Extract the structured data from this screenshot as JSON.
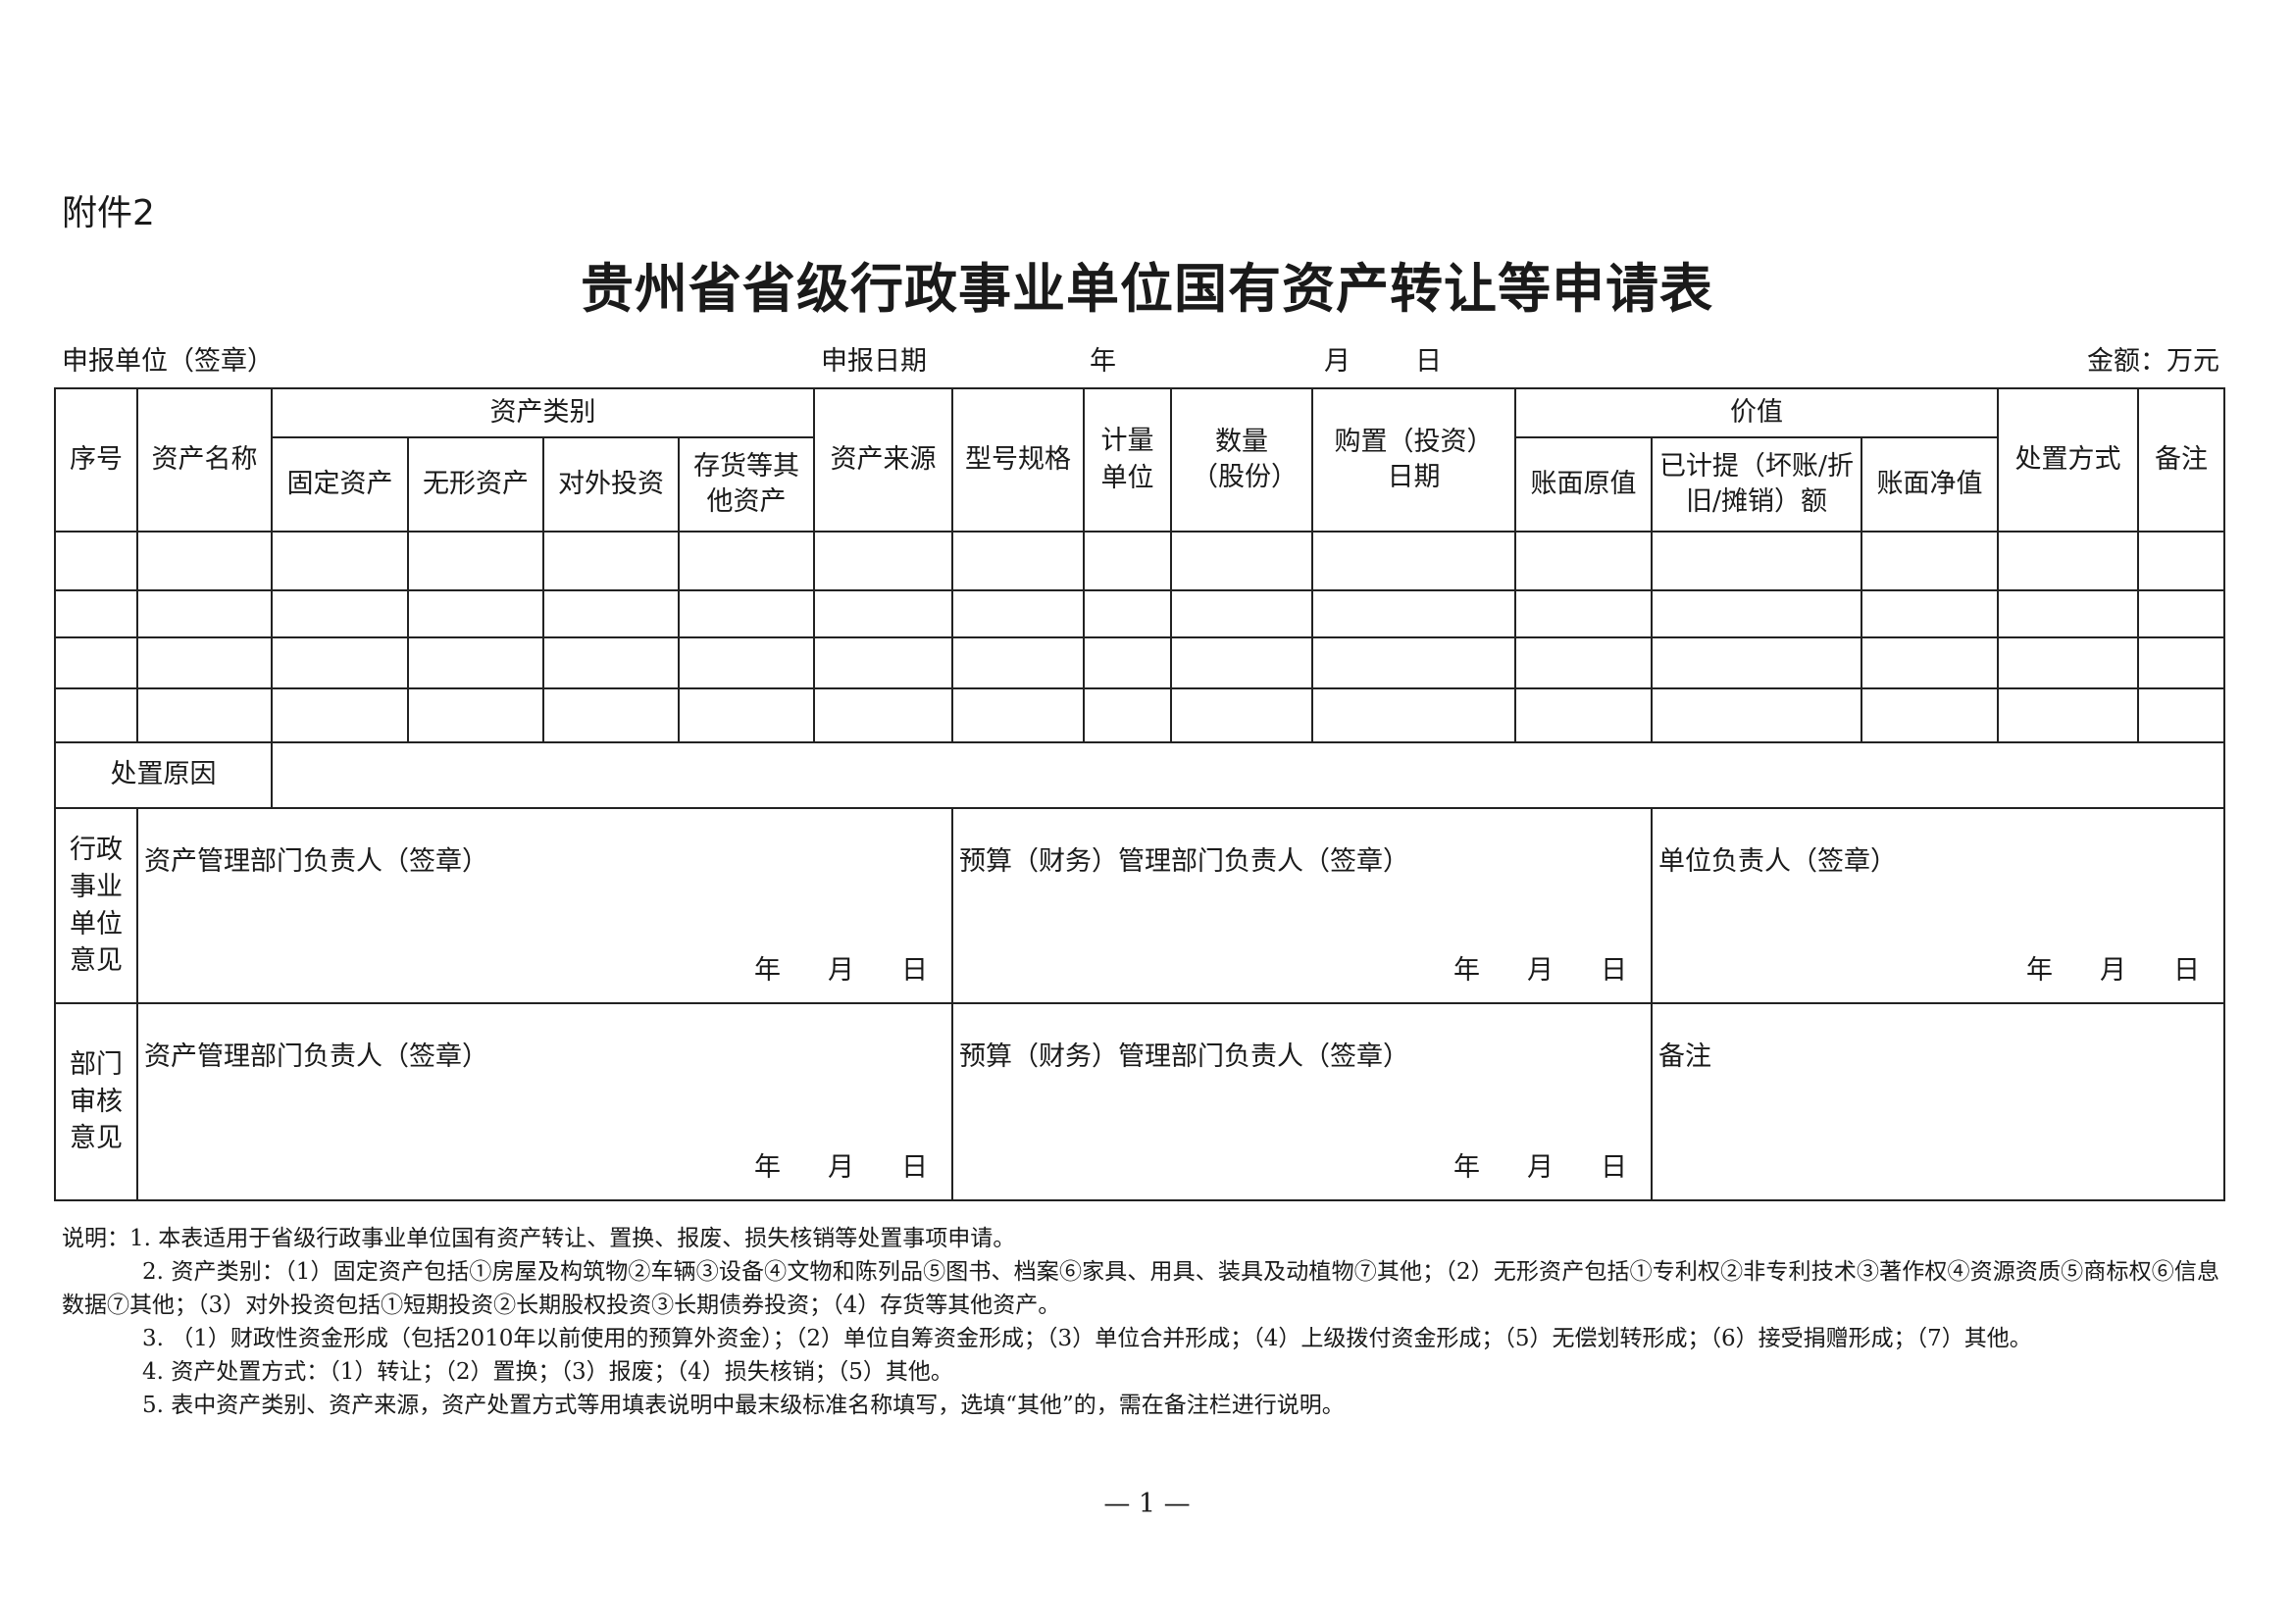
{
  "attachment_label": "附件2",
  "title": "贵州省省级行政事业单位国有资产转让等申请表",
  "header_line": {
    "unit_label": "申报单位（签章）",
    "date_label": "申报日期",
    "year": "年",
    "month": "月",
    "day": "日",
    "amount_unit": "金额：万元"
  },
  "table": {
    "headers": {
      "seq": "序号",
      "asset_name": "资产名称",
      "asset_category": "资产类别",
      "fixed_assets": "固定资产",
      "intangible_assets": "无形资产",
      "external_investment": "对外投资",
      "inventory_other": "存货等其他资产",
      "asset_source": "资产来源",
      "model_spec": "型号规格",
      "unit_of_measure": "计量单位",
      "quantity": "数量（股份）",
      "purchase_date": "购置（投资）日期",
      "value": "价值",
      "book_original": "账面原值",
      "accrued": "已计提（坏账/折旧/摊销）额",
      "book_net": "账面净值",
      "disposal_method": "处置方式",
      "remarks": "备注"
    },
    "rows": [
      [
        "",
        "",
        "",
        "",
        "",
        "",
        "",
        "",
        "",
        "",
        "",
        "",
        "",
        "",
        "",
        ""
      ],
      [
        "",
        "",
        "",
        "",
        "",
        "",
        "",
        "",
        "",
        "",
        "",
        "",
        "",
        "",
        "",
        ""
      ],
      [
        "",
        "",
        "",
        "",
        "",
        "",
        "",
        "",
        "",
        "",
        "",
        "",
        "",
        "",
        "",
        ""
      ],
      [
        "",
        "",
        "",
        "",
        "",
        "",
        "",
        "",
        "",
        "",
        "",
        "",
        "",
        "",
        "",
        ""
      ]
    ],
    "disposal_reason_label": "处置原因",
    "unit_opinion": {
      "label": "行政事业单位意见",
      "asset_mgmt": "资产管理部门负责人（签章）",
      "budget_mgmt": "预算（财务）管理部门负责人（签章）",
      "unit_head": "单位负责人（签章）"
    },
    "dept_review": {
      "label": "部门审核意见",
      "asset_mgmt": "资产管理部门负责人（签章）",
      "budget_mgmt": "预算（财务）管理部门负责人（签章）",
      "remarks": "备注"
    },
    "date_year": "年",
    "date_month": "月",
    "date_day": "日"
  },
  "notes": [
    "说明：1. 本表适用于省级行政事业单位国有资产转让、置换、报废、损失核销等处置事项申请。",
    "2. 资产类别：（1）固定资产包括①房屋及构筑物②车辆③设备④文物和陈列品⑤图书、档案⑥家具、用具、装具及动植物⑦其他；（2）无形资产包括①专利权②非专利技术③著作权④资源资质⑤商标权⑥信息数据⑦其他；（3）对外投资包括①短期投资②长期股权投资③长期债券投资；（4）存货等其他资产。",
    "3. （1）财政性资金形成（包括2010年以前使用的预算外资金）；（2）单位自筹资金形成；（3）单位合并形成；（4）上级拨付资金形成；（5）无偿划转形成；（6）接受捐赠形成；（7）其他。",
    "4. 资产处置方式：（1）转让；（2）置换；（3）报废；（4）损失核销；（5）其他。",
    "5. 表中资产类别、资产来源，资产处置方式等用填表说明中最末级标准名称填写，选填“其他”的，需在备注栏进行说明。"
  ],
  "page_number": "— 1 —"
}
